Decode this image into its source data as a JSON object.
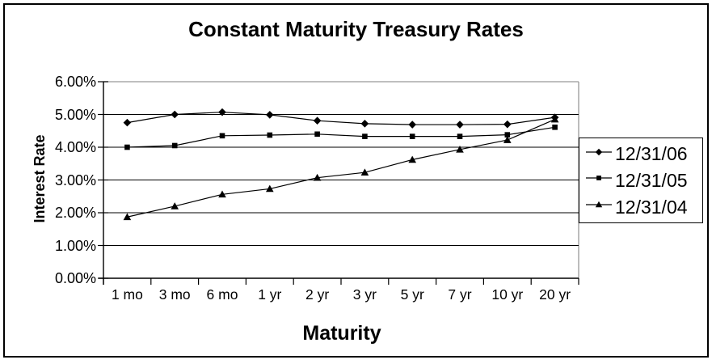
{
  "frame": {
    "background_color": "#ffffff",
    "border_color": "#000000"
  },
  "chart_data": {
    "type": "line",
    "title": "Constant Maturity Treasury Rates",
    "xlabel": "Maturity",
    "ylabel": "Interest Rate",
    "categories": [
      "1 mo",
      "3 mo",
      "6 mo",
      "1 yr",
      "2 yr",
      "3 yr",
      "5 yr",
      "7 yr",
      "10 yr",
      "20 yr"
    ],
    "series": [
      {
        "name": "12/31/06",
        "marker": "diamond",
        "color": "#000000",
        "values": [
          4.75,
          5.0,
          5.07,
          4.99,
          4.81,
          4.72,
          4.69,
          4.69,
          4.7,
          4.91
        ]
      },
      {
        "name": "12/31/05",
        "marker": "square",
        "color": "#000000",
        "values": [
          4.0,
          4.05,
          4.35,
          4.37,
          4.4,
          4.33,
          4.33,
          4.33,
          4.38,
          4.61
        ]
      },
      {
        "name": "12/31/04",
        "marker": "triangle",
        "color": "#000000",
        "values": [
          1.87,
          2.2,
          2.56,
          2.73,
          3.07,
          3.23,
          3.62,
          3.93,
          4.22,
          4.85
        ]
      }
    ],
    "ylim": [
      0,
      6
    ],
    "y_ticks": [
      {
        "value": 6,
        "label": "6.00%"
      },
      {
        "value": 5,
        "label": "5.00%"
      },
      {
        "value": 4,
        "label": "4.00%"
      },
      {
        "value": 3,
        "label": "3.00%"
      },
      {
        "value": 2,
        "label": "2.00%"
      },
      {
        "value": 1,
        "label": "1.00%"
      },
      {
        "value": 0,
        "label": "0.00%"
      }
    ],
    "grid": "horizontal",
    "legend_position": "right",
    "colors": {
      "axis": "#000000",
      "gridline": "#000000",
      "plot_border": "#999999",
      "text": "#000000",
      "plot_background": "#ffffff"
    }
  }
}
